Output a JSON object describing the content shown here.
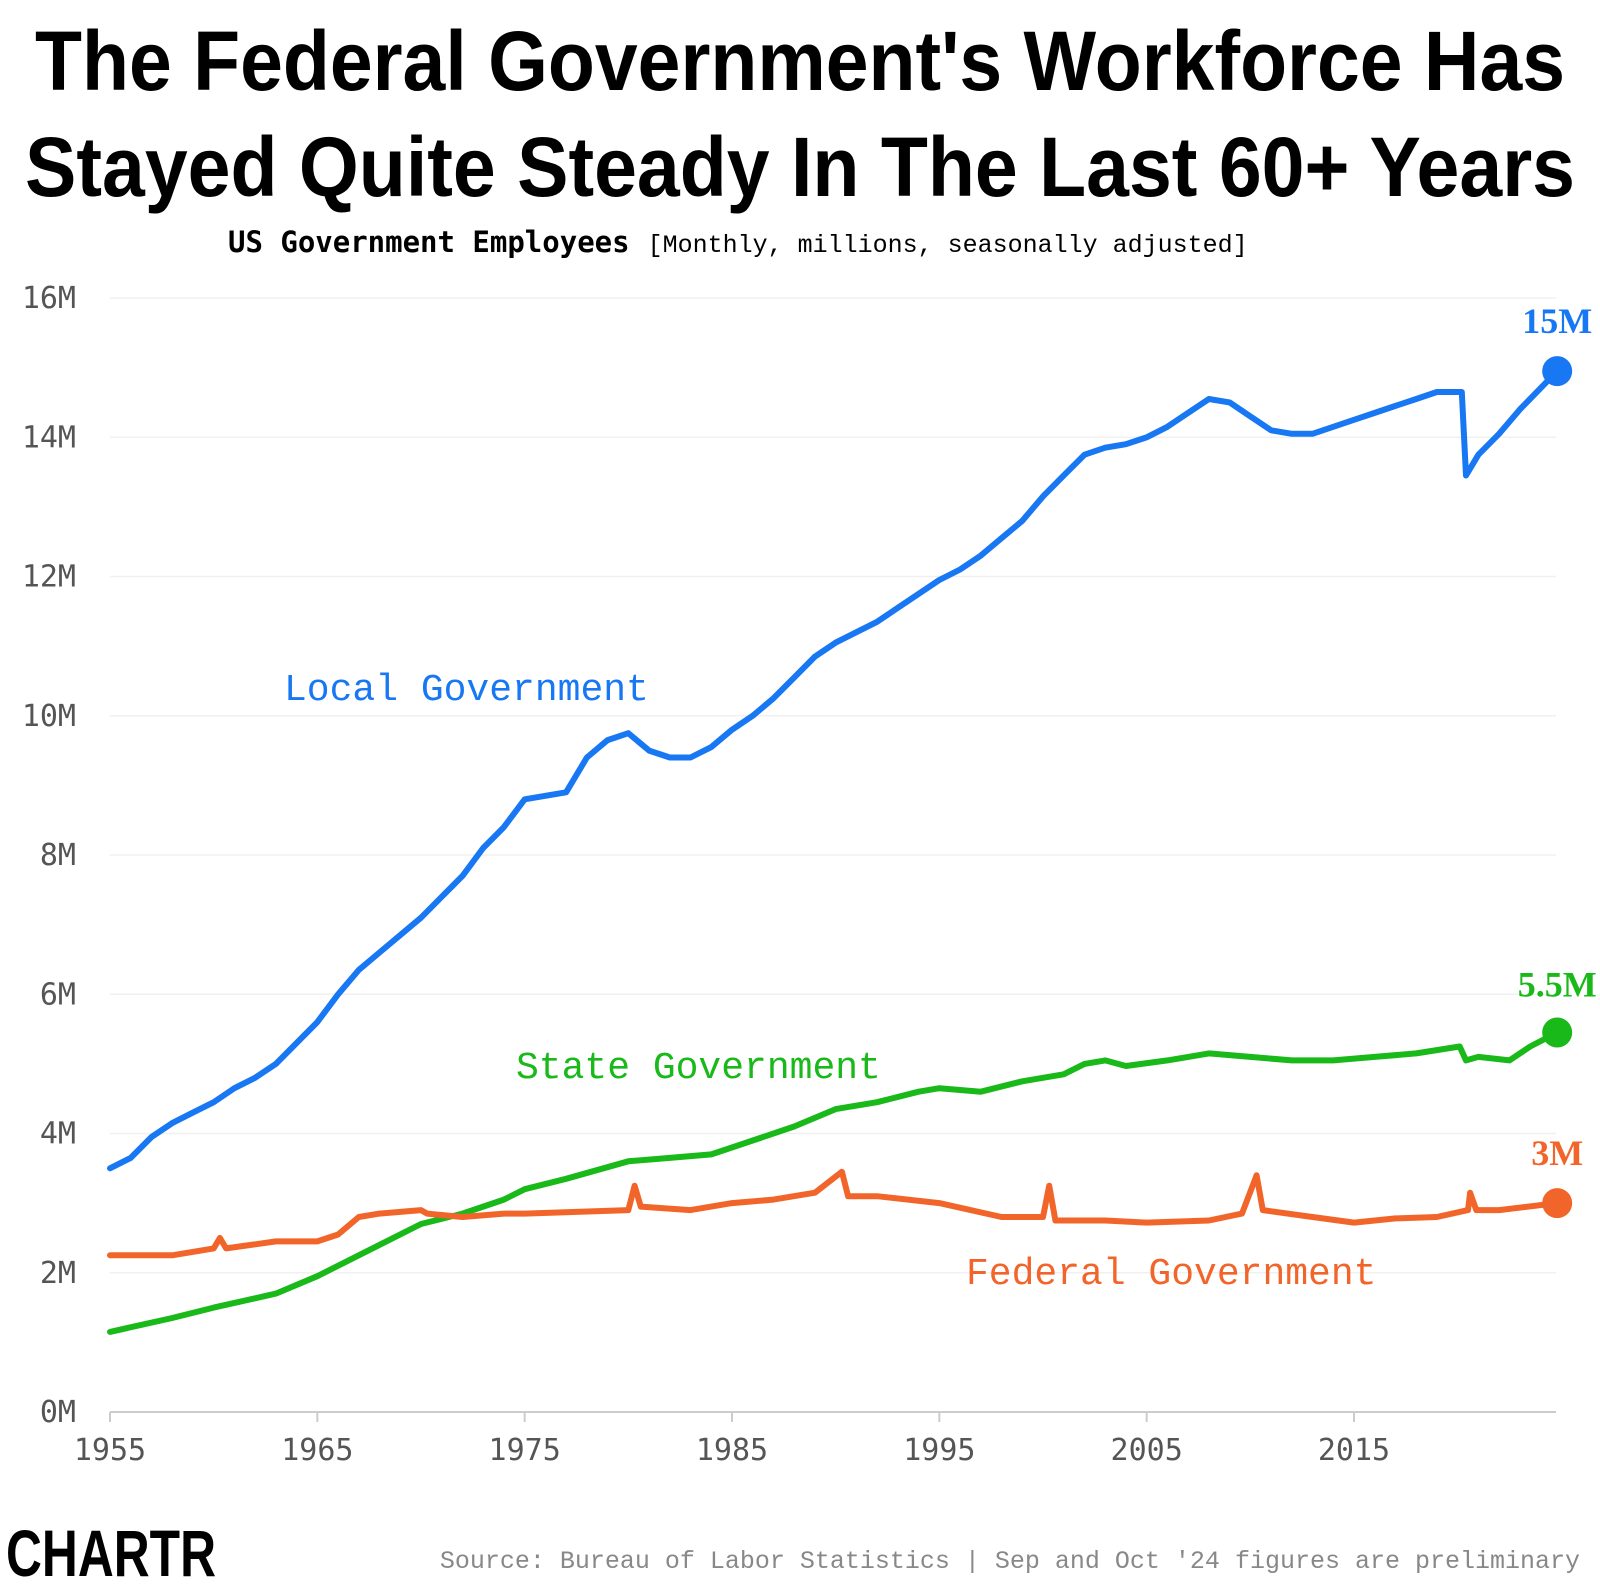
{
  "title_lines": [
    "The Federal Government's Workforce Has",
    "Stayed Quite Steady In The Last 60+ Years"
  ],
  "subtitle_bold": "US Government Employees",
  "subtitle_note": "[Monthly, millions, seasonally adjusted]",
  "source": "Source: Bureau of Labor Statistics | Sep and Oct '24 figures are preliminary",
  "logo": "CHARTR",
  "chart_data": {
    "type": "line",
    "title": "US Government Employees",
    "ylabel": "",
    "xlabel": "",
    "xlim": [
      1955,
      2025
    ],
    "ylim": [
      0,
      16
    ],
    "x_ticks": [
      1955,
      1965,
      1975,
      1985,
      1995,
      2005,
      2015
    ],
    "x_tick_labels": [
      "1955",
      "1965",
      "1975",
      "1985",
      "1995",
      "2005",
      "2015"
    ],
    "y_ticks": [
      0,
      2,
      4,
      6,
      8,
      10,
      12,
      14,
      16
    ],
    "y_tick_labels": [
      "0M",
      "2M",
      "4M",
      "6M",
      "8M",
      "10M",
      "12M",
      "14M",
      "16M"
    ],
    "grid": "horizontal",
    "series": [
      {
        "name": "Local Government",
        "color": "#1877f2",
        "end_label": "15M",
        "x": [
          1955,
          1956,
          1957,
          1958,
          1959,
          1960,
          1961,
          1962,
          1963,
          1964,
          1965,
          1966,
          1967,
          1968,
          1969,
          1970,
          1971,
          1972,
          1973,
          1974,
          1975,
          1976,
          1977,
          1978,
          1979,
          1980,
          1981,
          1982,
          1983,
          1984,
          1985,
          1986,
          1987,
          1988,
          1989,
          1990,
          1991,
          1992,
          1993,
          1994,
          1995,
          1996,
          1997,
          1998,
          1999,
          2000,
          2001,
          2002,
          2003,
          2004,
          2005,
          2006,
          2007,
          2008,
          2009,
          2010,
          2011,
          2012,
          2013,
          2014,
          2015,
          2016,
          2017,
          2018,
          2019,
          2020.2,
          2020.4,
          2021,
          2022,
          2023,
          2024.8
        ],
        "y": [
          3.5,
          3.65,
          3.95,
          4.15,
          4.3,
          4.45,
          4.65,
          4.8,
          5.0,
          5.3,
          5.6,
          6.0,
          6.35,
          6.6,
          6.85,
          7.1,
          7.4,
          7.7,
          8.1,
          8.4,
          8.8,
          8.85,
          8.9,
          9.4,
          9.65,
          9.75,
          9.5,
          9.4,
          9.4,
          9.55,
          9.8,
          10.0,
          10.25,
          10.55,
          10.85,
          11.05,
          11.2,
          11.35,
          11.55,
          11.75,
          11.95,
          12.1,
          12.3,
          12.55,
          12.8,
          13.15,
          13.45,
          13.75,
          13.85,
          13.9,
          14.0,
          14.15,
          14.35,
          14.55,
          14.5,
          14.3,
          14.1,
          14.05,
          14.05,
          14.15,
          14.25,
          14.35,
          14.45,
          14.55,
          14.65,
          14.65,
          13.45,
          13.75,
          14.05,
          14.4,
          14.95
        ]
      },
      {
        "name": "State Government",
        "color": "#19b919",
        "end_label": "5.5M",
        "x": [
          1955,
          1958,
          1960,
          1963,
          1965,
          1967,
          1970,
          1972,
          1974,
          1975,
          1977,
          1980,
          1982,
          1984,
          1986,
          1988,
          1990,
          1992,
          1994,
          1995,
          1997,
          1999,
          2001,
          2002,
          2003,
          2004,
          2006,
          2008,
          2010,
          2012,
          2014,
          2016,
          2018,
          2020.1,
          2020.4,
          2021,
          2022.5,
          2023.5,
          2024.8
        ],
        "y": [
          1.15,
          1.35,
          1.5,
          1.7,
          1.95,
          2.25,
          2.7,
          2.85,
          3.05,
          3.2,
          3.35,
          3.6,
          3.65,
          3.7,
          3.9,
          4.1,
          4.35,
          4.45,
          4.6,
          4.65,
          4.6,
          4.75,
          4.85,
          5.0,
          5.05,
          4.97,
          5.05,
          5.15,
          5.1,
          5.05,
          5.05,
          5.1,
          5.15,
          5.25,
          5.05,
          5.1,
          5.05,
          5.25,
          5.45
        ]
      },
      {
        "name": "Federal Government",
        "color": "#f2652a",
        "end_label": "3M",
        "x": [
          1955,
          1958,
          1960,
          1960.3,
          1960.6,
          1963,
          1965,
          1966,
          1967,
          1968,
          1970,
          1970.3,
          1972,
          1974,
          1975,
          1980,
          1980.3,
          1980.6,
          1983,
          1985,
          1987,
          1989,
          1990.3,
          1990.6,
          1992,
          1995,
          1998,
          2000,
          2000.3,
          2000.6,
          2003,
          2005,
          2008,
          2009.6,
          2010.3,
          2010.6,
          2013,
          2015,
          2017,
          2019,
          2020.5,
          2020.6,
          2020.9,
          2022,
          2024.8
        ],
        "y": [
          2.25,
          2.25,
          2.35,
          2.5,
          2.35,
          2.45,
          2.45,
          2.55,
          2.8,
          2.85,
          2.9,
          2.85,
          2.8,
          2.85,
          2.85,
          2.9,
          3.25,
          2.95,
          2.9,
          3.0,
          3.05,
          3.15,
          3.45,
          3.1,
          3.1,
          3.0,
          2.8,
          2.8,
          3.25,
          2.75,
          2.75,
          2.72,
          2.75,
          2.85,
          3.4,
          2.9,
          2.8,
          2.72,
          2.78,
          2.8,
          2.9,
          3.15,
          2.9,
          2.9,
          3.0
        ]
      }
    ]
  }
}
